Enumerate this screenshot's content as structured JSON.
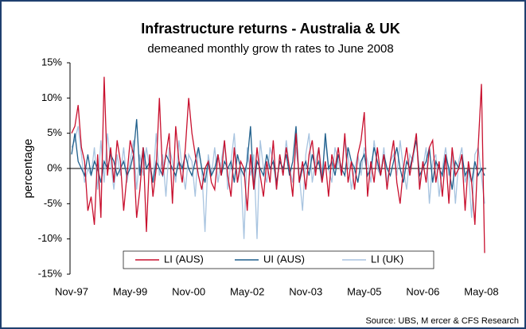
{
  "chart_data": {
    "type": "line",
    "title": "Infrastructure returns - Australia & UK",
    "subtitle": "demeaned monthly grow th rates to June 2008",
    "y_label": "percentage",
    "source": "Source: UBS, M ercer & CFS Research",
    "categories": [
      "Nov-97",
      null,
      null,
      null,
      null,
      null,
      null,
      null,
      null,
      null,
      null,
      null,
      null,
      null,
      null,
      null,
      null,
      null,
      "May-99",
      null,
      null,
      null,
      null,
      null,
      null,
      null,
      null,
      null,
      null,
      null,
      null,
      null,
      null,
      null,
      null,
      null,
      "Nov-00",
      null,
      null,
      null,
      null,
      null,
      null,
      null,
      null,
      null,
      null,
      null,
      null,
      null,
      null,
      null,
      null,
      null,
      "May-02",
      null,
      null,
      null,
      null,
      null,
      null,
      null,
      null,
      null,
      null,
      null,
      null,
      null,
      null,
      null,
      null,
      null,
      "Nov-03",
      null,
      null,
      null,
      null,
      null,
      null,
      null,
      null,
      null,
      null,
      null,
      null,
      null,
      null,
      null,
      null,
      null,
      "May-05",
      null,
      null,
      null,
      null,
      null,
      null,
      null,
      null,
      null,
      null,
      null,
      null,
      null,
      null,
      null,
      null,
      null,
      "Nov-06",
      null,
      null,
      null,
      null,
      null,
      null,
      null,
      null,
      null,
      null,
      null,
      null,
      null,
      null,
      null,
      null,
      null,
      "May-08",
      null
    ],
    "series": [
      {
        "name": "LI (AUS)",
        "color": "#c8102e",
        "values": [
          5,
          6,
          9,
          3,
          1,
          -6,
          -4,
          -8,
          2,
          -7,
          13,
          -1,
          3,
          -2,
          4,
          1,
          -6,
          -1,
          4,
          2,
          -7,
          -3,
          3,
          -9,
          2,
          -4,
          0,
          10,
          -1,
          2,
          5,
          -5,
          6,
          1,
          -2,
          3,
          10,
          5,
          2,
          -1,
          -3,
          0,
          1,
          -2,
          -3,
          2,
          -1,
          4,
          -1,
          -4,
          3,
          -2,
          1,
          0,
          -6,
          2,
          -3,
          3,
          -1,
          -4,
          1,
          -2,
          4,
          -3,
          2,
          -1,
          3,
          0,
          -4,
          5,
          -2,
          1,
          -3,
          2,
          4,
          -1,
          3,
          -2,
          1,
          -4,
          2,
          0,
          3,
          -1,
          5,
          -2,
          1,
          -3,
          2,
          4,
          8,
          -4,
          1,
          -2,
          3,
          -1,
          2,
          -3,
          1,
          4,
          -2,
          -5,
          0,
          3,
          -1,
          2,
          5,
          -3,
          1,
          -2,
          3,
          4,
          -2,
          1,
          -4,
          2,
          -5,
          3,
          -1,
          0,
          2,
          -6,
          1,
          -2,
          -8,
          3,
          12,
          -12
        ]
      },
      {
        "name": "UI (AUS)",
        "color": "#1f5f8b",
        "values": [
          2,
          5,
          1,
          0,
          -1,
          2,
          -1,
          1,
          0,
          -2,
          1,
          0,
          2,
          1,
          -1,
          0,
          1,
          -1,
          0,
          2,
          7,
          -1,
          3,
          0,
          1,
          -2,
          1,
          0,
          -1,
          2,
          1,
          0,
          -1,
          1,
          0,
          2,
          0,
          -1,
          1,
          3,
          0,
          -2,
          1,
          -1,
          0,
          2,
          -1,
          1,
          0,
          1,
          -2,
          2,
          0,
          -1,
          1,
          6,
          -3,
          1,
          0,
          -1,
          2,
          0,
          1,
          -2,
          1,
          0,
          2,
          -1,
          1,
          6,
          -2,
          0,
          1,
          -1,
          2,
          0,
          1,
          -2,
          5,
          0,
          1,
          -1,
          2,
          0,
          -1,
          3,
          1,
          0,
          -2,
          1,
          2,
          -1,
          0,
          3,
          1,
          -1,
          2,
          0,
          -1,
          1,
          3,
          0,
          -2,
          1,
          0,
          2,
          4,
          -1,
          0,
          1,
          3,
          -2,
          1,
          0,
          -1,
          2,
          0,
          -3,
          1,
          0,
          2,
          -1,
          0,
          -2,
          1,
          -1,
          0,
          -1
        ]
      },
      {
        "name": "LI (UK)",
        "color": "#a8c4e0",
        "values": [
          3,
          4,
          6,
          2,
          -2,
          0,
          -1,
          3,
          -3,
          4,
          -2,
          5,
          1,
          -3,
          2,
          -1,
          3,
          -2,
          1,
          4,
          -3,
          2,
          -1,
          3,
          0,
          -2,
          5,
          -1,
          2,
          -4,
          3,
          1,
          -2,
          4,
          0,
          -3,
          2,
          1,
          -4,
          3,
          0,
          -9,
          2,
          -1,
          3,
          -2,
          1,
          4,
          -3,
          1,
          5,
          -2,
          0,
          -10,
          3,
          -1,
          2,
          -10,
          4,
          0,
          -2,
          3,
          1,
          -3,
          2,
          -1,
          4,
          0,
          -2,
          3,
          -1,
          -6,
          2,
          5,
          -2,
          1,
          3,
          -1,
          4,
          0,
          -2,
          3,
          1,
          -1,
          4,
          2,
          -3,
          0,
          2,
          -1,
          3,
          1,
          -2,
          4,
          0,
          -1,
          3,
          -2,
          1,
          2,
          -1,
          4,
          0,
          -3,
          2,
          1,
          5,
          -2,
          0,
          3,
          -5,
          1,
          2,
          -4,
          0,
          3,
          -1,
          2,
          -5,
          1,
          3,
          -2,
          0,
          -7,
          2,
          3,
          -1,
          -5
        ]
      }
    ],
    "ylim": [
      -15,
      15
    ],
    "yticks": [
      {
        "value": -15,
        "label": "-15%"
      },
      {
        "value": -10,
        "label": "-10%"
      },
      {
        "value": -5,
        "label": "-5%"
      },
      {
        "value": 0,
        "label": "0%"
      },
      {
        "value": 5,
        "label": "5%"
      },
      {
        "value": 10,
        "label": "10%"
      },
      {
        "value": 15,
        "label": "15%"
      }
    ]
  }
}
